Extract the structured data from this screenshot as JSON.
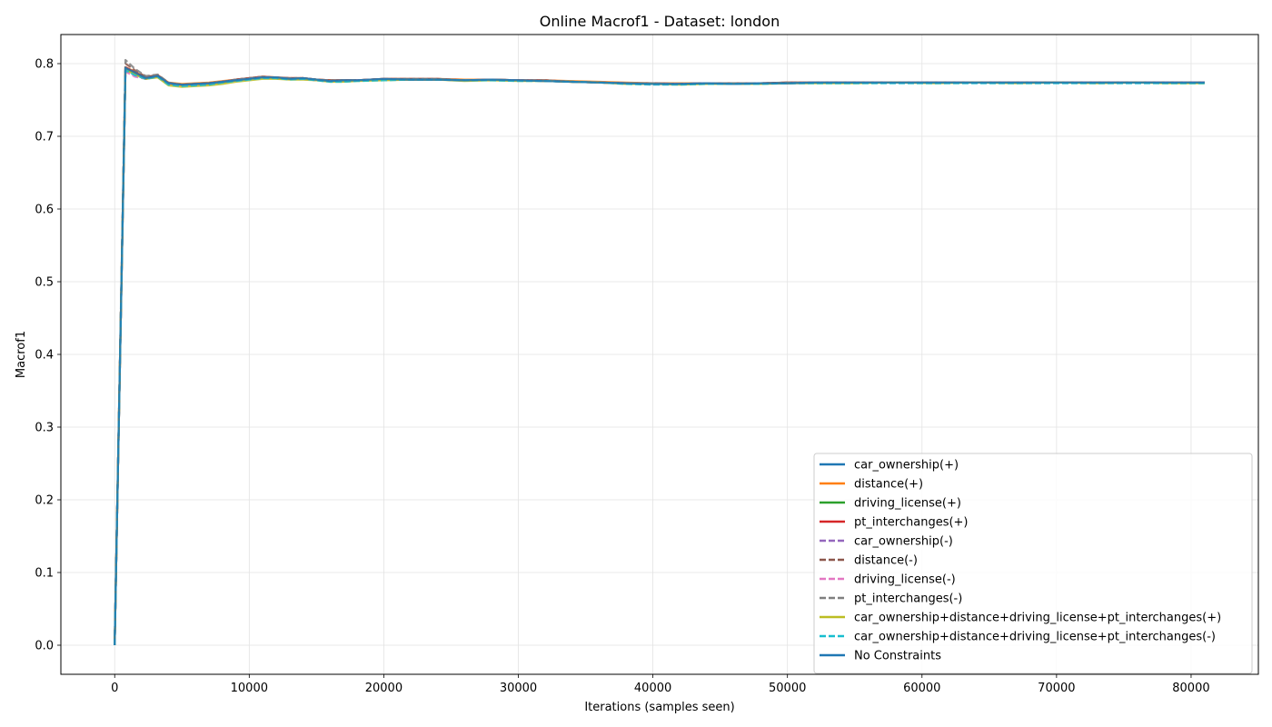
{
  "chart_data": {
    "type": "line",
    "title": "Online Macrof1 - Dataset: london",
    "xlabel": "Iterations (samples seen)",
    "ylabel": "Macrof1",
    "xlim": [
      -4000,
      85000
    ],
    "ylim": [
      -0.04,
      0.84
    ],
    "xticks": [
      0,
      10000,
      20000,
      30000,
      40000,
      50000,
      60000,
      70000,
      80000
    ],
    "yticks": [
      0.0,
      0.1,
      0.2,
      0.3,
      0.4,
      0.5,
      0.6,
      0.7,
      0.8
    ],
    "xtick_labels": [
      "0",
      "10000",
      "20000",
      "30000",
      "40000",
      "50000",
      "60000",
      "70000",
      "80000"
    ],
    "ytick_labels": [
      "0.0",
      "0.1",
      "0.2",
      "0.3",
      "0.4",
      "0.5",
      "0.6",
      "0.7",
      "0.8"
    ],
    "grid": true,
    "legend_position": "lower-right",
    "x": [
      0,
      800,
      1500,
      2300,
      3200,
      4000,
      5000,
      6000,
      7000,
      8000,
      9000,
      10000,
      11000,
      12000,
      13000,
      14000,
      15000,
      16000,
      17000,
      18000,
      20000,
      22000,
      24000,
      26000,
      28000,
      30000,
      32000,
      34000,
      36000,
      38000,
      40000,
      42000,
      44000,
      46000,
      48000,
      50000,
      52000,
      55000,
      58000,
      61000,
      64000,
      67000,
      70000,
      73000,
      76000,
      78000,
      81000
    ],
    "series": [
      {
        "name": "car_ownership(+)",
        "color": "#1f77b4",
        "dash": "solid",
        "values": [
          0.0,
          0.793,
          0.787,
          0.78,
          0.783,
          0.773,
          0.771,
          0.772,
          0.773,
          0.775,
          0.777,
          0.779,
          0.781,
          0.781,
          0.779,
          0.78,
          0.778,
          0.776,
          0.777,
          0.777,
          0.779,
          0.778,
          0.778,
          0.777,
          0.778,
          0.777,
          0.776,
          0.775,
          0.774,
          0.773,
          0.772,
          0.772,
          0.773,
          0.772,
          0.773,
          0.773,
          0.774,
          0.774,
          0.774,
          0.774,
          0.774,
          0.774,
          0.774,
          0.774,
          0.774,
          0.774,
          0.774
        ]
      },
      {
        "name": "distance(+)",
        "color": "#ff7f0e",
        "dash": "solid",
        "values": [
          0.0,
          0.795,
          0.789,
          0.781,
          0.784,
          0.774,
          0.772,
          0.773,
          0.774,
          0.776,
          0.778,
          0.78,
          0.782,
          0.781,
          0.78,
          0.78,
          0.778,
          0.777,
          0.777,
          0.777,
          0.779,
          0.779,
          0.779,
          0.778,
          0.778,
          0.777,
          0.777,
          0.776,
          0.775,
          0.774,
          0.773,
          0.773,
          0.773,
          0.773,
          0.773,
          0.774,
          0.774,
          0.774,
          0.774,
          0.774,
          0.774,
          0.774,
          0.774,
          0.774,
          0.774,
          0.774,
          0.774
        ]
      },
      {
        "name": "driving_license(+)",
        "color": "#2ca02c",
        "dash": "solid",
        "values": [
          0.0,
          0.794,
          0.786,
          0.779,
          0.782,
          0.772,
          0.77,
          0.771,
          0.772,
          0.774,
          0.777,
          0.779,
          0.781,
          0.78,
          0.779,
          0.779,
          0.778,
          0.776,
          0.776,
          0.777,
          0.778,
          0.778,
          0.778,
          0.777,
          0.777,
          0.777,
          0.776,
          0.775,
          0.774,
          0.773,
          0.772,
          0.772,
          0.773,
          0.772,
          0.773,
          0.773,
          0.774,
          0.774,
          0.774,
          0.774,
          0.774,
          0.774,
          0.774,
          0.774,
          0.774,
          0.774,
          0.774
        ]
      },
      {
        "name": "pt_interchanges(+)",
        "color": "#d62728",
        "dash": "solid",
        "values": [
          0.0,
          0.795,
          0.788,
          0.781,
          0.784,
          0.773,
          0.771,
          0.772,
          0.773,
          0.775,
          0.778,
          0.78,
          0.782,
          0.781,
          0.78,
          0.78,
          0.778,
          0.777,
          0.777,
          0.777,
          0.779,
          0.779,
          0.779,
          0.777,
          0.778,
          0.777,
          0.777,
          0.775,
          0.774,
          0.773,
          0.773,
          0.772,
          0.773,
          0.773,
          0.773,
          0.774,
          0.774,
          0.774,
          0.774,
          0.774,
          0.774,
          0.774,
          0.774,
          0.774,
          0.774,
          0.774,
          0.774
        ]
      },
      {
        "name": "car_ownership(-)",
        "color": "#9467bd",
        "dash": "dashed",
        "values": [
          0.0,
          0.79,
          0.784,
          0.779,
          0.782,
          0.772,
          0.77,
          0.771,
          0.772,
          0.775,
          0.777,
          0.779,
          0.781,
          0.78,
          0.779,
          0.779,
          0.777,
          0.776,
          0.776,
          0.777,
          0.778,
          0.778,
          0.778,
          0.777,
          0.777,
          0.777,
          0.776,
          0.775,
          0.774,
          0.773,
          0.772,
          0.772,
          0.773,
          0.772,
          0.773,
          0.773,
          0.774,
          0.774,
          0.774,
          0.774,
          0.774,
          0.774,
          0.774,
          0.774,
          0.774,
          0.774,
          0.774
        ]
      },
      {
        "name": "distance(-)",
        "color": "#8c564b",
        "dash": "dashed",
        "values": [
          0.0,
          0.8,
          0.791,
          0.782,
          0.784,
          0.773,
          0.771,
          0.772,
          0.773,
          0.775,
          0.778,
          0.78,
          0.782,
          0.781,
          0.78,
          0.78,
          0.778,
          0.777,
          0.777,
          0.777,
          0.779,
          0.779,
          0.779,
          0.777,
          0.778,
          0.777,
          0.777,
          0.775,
          0.774,
          0.773,
          0.773,
          0.772,
          0.773,
          0.773,
          0.773,
          0.774,
          0.774,
          0.774,
          0.774,
          0.774,
          0.774,
          0.774,
          0.774,
          0.774,
          0.774,
          0.774,
          0.774
        ]
      },
      {
        "name": "driving_license(-)",
        "color": "#e377c2",
        "dash": "dashed",
        "values": [
          0.0,
          0.789,
          0.782,
          0.779,
          0.782,
          0.772,
          0.77,
          0.771,
          0.772,
          0.775,
          0.777,
          0.779,
          0.781,
          0.78,
          0.779,
          0.779,
          0.777,
          0.776,
          0.776,
          0.777,
          0.778,
          0.778,
          0.778,
          0.777,
          0.777,
          0.777,
          0.776,
          0.775,
          0.774,
          0.773,
          0.772,
          0.772,
          0.773,
          0.772,
          0.773,
          0.773,
          0.774,
          0.774,
          0.774,
          0.774,
          0.774,
          0.774,
          0.774,
          0.774,
          0.774,
          0.774,
          0.774
        ]
      },
      {
        "name": "pt_interchanges(-)",
        "color": "#7f7f7f",
        "dash": "dashed",
        "values": [
          0.0,
          0.805,
          0.793,
          0.783,
          0.785,
          0.774,
          0.771,
          0.772,
          0.773,
          0.775,
          0.778,
          0.78,
          0.782,
          0.781,
          0.78,
          0.78,
          0.778,
          0.777,
          0.777,
          0.777,
          0.779,
          0.779,
          0.779,
          0.777,
          0.778,
          0.777,
          0.777,
          0.775,
          0.774,
          0.773,
          0.773,
          0.772,
          0.773,
          0.773,
          0.773,
          0.774,
          0.774,
          0.774,
          0.774,
          0.774,
          0.774,
          0.774,
          0.774,
          0.774,
          0.774,
          0.774,
          0.774
        ]
      },
      {
        "name": "car_ownership+distance+driving_license+pt_interchanges(+)",
        "color": "#bcbd22",
        "dash": "solid",
        "values": [
          0.0,
          0.792,
          0.785,
          0.779,
          0.781,
          0.77,
          0.768,
          0.769,
          0.77,
          0.772,
          0.775,
          0.777,
          0.779,
          0.779,
          0.778,
          0.778,
          0.777,
          0.775,
          0.775,
          0.776,
          0.777,
          0.778,
          0.778,
          0.776,
          0.777,
          0.776,
          0.776,
          0.775,
          0.774,
          0.772,
          0.772,
          0.771,
          0.772,
          0.772,
          0.772,
          0.773,
          0.773,
          0.773,
          0.774,
          0.773,
          0.774,
          0.773,
          0.774,
          0.773,
          0.774,
          0.773,
          0.773
        ]
      },
      {
        "name": "car_ownership+distance+driving_license+pt_interchanges(-)",
        "color": "#17becf",
        "dash": "dashed",
        "values": [
          0.0,
          0.791,
          0.784,
          0.779,
          0.782,
          0.771,
          0.769,
          0.77,
          0.771,
          0.774,
          0.776,
          0.778,
          0.78,
          0.78,
          0.778,
          0.779,
          0.777,
          0.775,
          0.775,
          0.776,
          0.777,
          0.778,
          0.778,
          0.777,
          0.777,
          0.776,
          0.776,
          0.775,
          0.774,
          0.772,
          0.771,
          0.771,
          0.772,
          0.772,
          0.772,
          0.773,
          0.773,
          0.773,
          0.773,
          0.773,
          0.773,
          0.773,
          0.773,
          0.773,
          0.773,
          0.773,
          0.773
        ]
      },
      {
        "name": "No Constraints",
        "color": "#1f77b4",
        "dash": "solid",
        "values": [
          0.0,
          0.794,
          0.788,
          0.78,
          0.783,
          0.773,
          0.771,
          0.772,
          0.773,
          0.775,
          0.777,
          0.779,
          0.781,
          0.781,
          0.779,
          0.78,
          0.778,
          0.776,
          0.777,
          0.777,
          0.779,
          0.778,
          0.778,
          0.777,
          0.778,
          0.777,
          0.776,
          0.775,
          0.774,
          0.773,
          0.772,
          0.772,
          0.773,
          0.772,
          0.773,
          0.773,
          0.774,
          0.774,
          0.774,
          0.774,
          0.774,
          0.774,
          0.774,
          0.774,
          0.774,
          0.774,
          0.774
        ]
      }
    ]
  }
}
